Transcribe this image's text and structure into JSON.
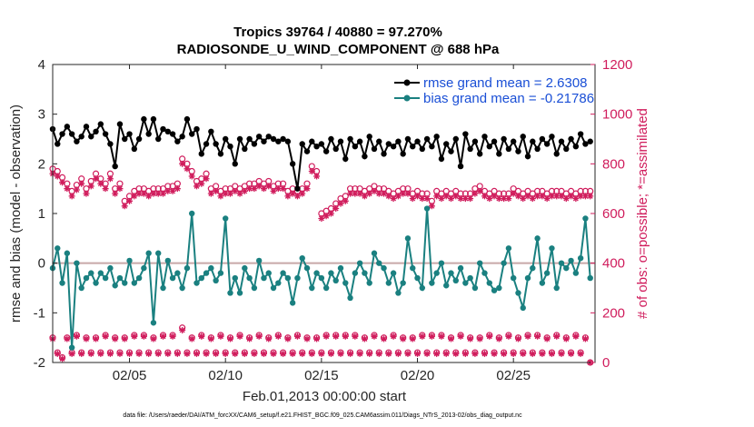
{
  "chart_data": {
    "type": "line",
    "title_line1": "Tropics 39764 / 40880 = 97.270%",
    "title_line2": "RADIOSONDE_U_WIND_COMPONENT @ 688 hPa",
    "xlabel": "Feb.01,2013 00:00:00 start",
    "ylabel_left": "rmse and bias (model - observation)",
    "ylabel_right": "# of obs: o=possible; *=assimilated",
    "xlim": [
      1,
      29.25
    ],
    "ylim_left": [
      -2,
      4
    ],
    "ylim_right": [
      0,
      1200
    ],
    "x_tick_positions": [
      5,
      10,
      15,
      20,
      25
    ],
    "x_tick_labels": [
      "02/05",
      "02/10",
      "02/15",
      "02/20",
      "02/25"
    ],
    "y_left_ticks": [
      "-2",
      "-1",
      "0",
      "1",
      "2",
      "3",
      "4"
    ],
    "y_right_ticks": [
      "0",
      "200",
      "400",
      "600",
      "800",
      "1000",
      "1200"
    ],
    "legend": {
      "rmse_label": "rmse grand mean = 2.6308",
      "bias_label": "bias grand mean = -0.21786"
    },
    "footnote": "data file: /Users/raeder/DAI/ATM_forcXX/CAM6_setup/f.e21.FHIST_BGC.f09_025.CAM6assim.011/Diags_NTrS_2013-02/obs_diag_output.nc",
    "colors": {
      "rmse": "#000000",
      "bias": "#1a8080",
      "obs": "#d01c5c",
      "zero_line": "#c8a8a8",
      "legend_text": "#1a4fd6"
    },
    "x": [
      1.0,
      1.25,
      1.5,
      1.75,
      2.0,
      2.25,
      2.5,
      2.75,
      3.0,
      3.25,
      3.5,
      3.75,
      4.0,
      4.25,
      4.5,
      4.75,
      5.0,
      5.25,
      5.5,
      5.75,
      6.0,
      6.25,
      6.5,
      6.75,
      7.0,
      7.25,
      7.5,
      7.75,
      8.0,
      8.25,
      8.5,
      8.75,
      9.0,
      9.25,
      9.5,
      9.75,
      10.0,
      10.25,
      10.5,
      10.75,
      11.0,
      11.25,
      11.5,
      11.75,
      12.0,
      12.25,
      12.5,
      12.75,
      13.0,
      13.25,
      13.5,
      13.75,
      14.0,
      14.25,
      14.5,
      14.75,
      15.0,
      15.25,
      15.5,
      15.75,
      16.0,
      16.25,
      16.5,
      16.75,
      17.0,
      17.25,
      17.5,
      17.75,
      18.0,
      18.25,
      18.5,
      18.75,
      19.0,
      19.25,
      19.5,
      19.75,
      20.0,
      20.25,
      20.5,
      20.75,
      21.0,
      21.25,
      21.5,
      21.75,
      22.0,
      22.25,
      22.5,
      22.75,
      23.0,
      23.25,
      23.5,
      23.75,
      24.0,
      24.25,
      24.5,
      24.75,
      25.0,
      25.25,
      25.5,
      25.75,
      26.0,
      26.25,
      26.5,
      26.75,
      27.0,
      27.25,
      27.5,
      27.75,
      28.0,
      28.25,
      28.5,
      28.75,
      29.0
    ],
    "rmse": [
      2.7,
      2.4,
      2.6,
      2.75,
      2.6,
      2.45,
      2.55,
      2.75,
      2.55,
      2.65,
      2.8,
      2.6,
      2.4,
      1.95,
      2.8,
      2.5,
      2.6,
      2.3,
      2.5,
      2.9,
      2.6,
      2.9,
      2.5,
      2.7,
      2.65,
      2.6,
      2.45,
      2.55,
      2.9,
      2.6,
      2.7,
      2.2,
      2.4,
      2.65,
      2.4,
      2.2,
      2.5,
      2.35,
      2.0,
      2.5,
      2.3,
      2.5,
      2.4,
      2.55,
      2.45,
      2.55,
      2.5,
      2.45,
      2.5,
      2.45,
      2.0,
      1.5,
      2.4,
      2.25,
      2.45,
      2.35,
      2.4,
      2.25,
      2.5,
      2.3,
      2.45,
      2.1,
      2.5,
      2.35,
      2.45,
      2.15,
      2.55,
      2.3,
      2.45,
      2.2,
      2.4,
      2.35,
      2.45,
      2.2,
      2.5,
      2.35,
      2.45,
      2.3,
      2.5,
      2.35,
      2.55,
      2.1,
      2.4,
      2.25,
      2.5,
      1.95,
      2.6,
      2.3,
      2.45,
      2.2,
      2.55,
      2.35,
      2.45,
      2.2,
      2.5,
      2.3,
      2.45,
      2.25,
      2.55,
      2.15,
      2.45,
      2.3,
      2.5,
      2.4,
      2.55,
      2.2,
      2.45,
      2.3,
      2.5,
      2.35,
      2.6,
      2.4,
      2.45
    ],
    "bias": [
      -0.1,
      0.3,
      -0.4,
      0.2,
      -1.7,
      0.0,
      -0.5,
      -0.3,
      -0.2,
      -0.4,
      -0.2,
      -0.3,
      -0.1,
      -0.45,
      -0.3,
      -0.4,
      0.05,
      -0.4,
      -0.3,
      -0.1,
      0.2,
      -1.2,
      0.2,
      -0.5,
      0.05,
      -0.3,
      -0.2,
      -0.5,
      -0.1,
      1.0,
      -0.4,
      -0.3,
      -0.2,
      -0.1,
      -0.35,
      -0.2,
      0.9,
      -0.6,
      -0.3,
      -0.6,
      -0.1,
      -0.3,
      -0.5,
      0.05,
      -0.3,
      -0.2,
      -0.5,
      -0.4,
      -0.2,
      -0.3,
      -0.8,
      -0.3,
      0.1,
      -0.1,
      -0.5,
      -0.2,
      -0.3,
      -0.5,
      -0.2,
      -0.35,
      -0.1,
      -0.4,
      -0.7,
      -0.2,
      0.0,
      -0.2,
      -0.4,
      0.2,
      0.0,
      -0.1,
      -0.4,
      -0.2,
      -0.6,
      -0.4,
      0.5,
      -0.1,
      -0.3,
      -0.5,
      1.1,
      -0.4,
      -0.2,
      0.0,
      -0.45,
      -0.2,
      -0.35,
      -0.1,
      -0.4,
      -0.3,
      -0.5,
      0.0,
      -0.2,
      -0.4,
      -0.55,
      -0.5,
      0.0,
      0.3,
      -0.3,
      -0.6,
      -0.9,
      -0.3,
      -0.1,
      0.5,
      -0.4,
      -0.2,
      0.3,
      -0.5,
      0.0,
      -0.1,
      0.05,
      -0.2,
      0.1,
      0.9,
      -0.3
    ],
    "obs_possible": [
      780,
      770,
      745,
      720,
      690,
      715,
      740,
      700,
      730,
      760,
      740,
      720,
      760,
      700,
      720,
      650,
      670,
      690,
      700,
      700,
      690,
      700,
      700,
      700,
      710,
      710,
      720,
      820,
      800,
      770,
      730,
      740,
      760,
      700,
      710,
      690,
      700,
      700,
      710,
      700,
      710,
      720,
      720,
      730,
      720,
      730,
      710,
      720,
      720,
      690,
      700,
      690,
      700,
      720,
      790,
      770,
      600,
      610,
      620,
      640,
      660,
      670,
      700,
      700,
      700,
      690,
      700,
      710,
      700,
      700,
      690,
      680,
      690,
      700,
      700,
      680,
      690,
      680,
      680,
      650,
      690,
      680,
      690,
      680,
      690,
      680,
      680,
      680,
      700,
      710,
      690,
      680,
      690,
      680,
      680,
      680,
      700,
      690,
      680,
      690,
      680,
      690,
      690,
      680,
      690,
      690,
      690,
      680,
      690,
      680,
      690,
      690,
      690
    ],
    "obs_assimilated": [
      760,
      750,
      725,
      700,
      670,
      695,
      720,
      680,
      710,
      740,
      720,
      700,
      740,
      680,
      700,
      630,
      650,
      670,
      680,
      680,
      670,
      680,
      680,
      680,
      690,
      690,
      700,
      800,
      780,
      750,
      710,
      720,
      740,
      680,
      690,
      670,
      680,
      680,
      690,
      680,
      690,
      700,
      700,
      710,
      700,
      710,
      690,
      700,
      700,
      670,
      680,
      670,
      680,
      700,
      770,
      750,
      580,
      590,
      600,
      620,
      640,
      650,
      680,
      680,
      680,
      670,
      680,
      690,
      680,
      680,
      670,
      660,
      670,
      680,
      680,
      660,
      670,
      660,
      660,
      630,
      670,
      660,
      670,
      660,
      670,
      660,
      660,
      660,
      680,
      690,
      670,
      660,
      670,
      660,
      660,
      660,
      680,
      670,
      660,
      670,
      660,
      670,
      670,
      660,
      670,
      670,
      670,
      660,
      670,
      660,
      670,
      670,
      670
    ],
    "obs_low_possible": [
      100,
      40,
      20,
      100,
      40,
      110,
      40,
      100,
      40,
      100,
      40,
      110,
      40,
      100,
      40,
      100,
      40,
      110,
      40,
      110,
      40,
      100,
      40,
      110,
      40,
      110,
      40,
      140,
      40,
      100,
      40,
      110,
      40,
      100,
      40,
      110,
      40,
      100,
      40,
      110,
      40,
      100,
      40,
      110,
      40,
      100,
      40,
      110,
      40,
      100,
      40,
      110,
      40,
      100,
      40,
      100,
      40,
      110,
      40,
      110,
      40,
      110,
      40,
      110,
      40,
      100,
      40,
      110,
      40,
      100,
      40,
      110,
      40,
      100,
      40,
      100,
      40,
      110,
      40,
      110,
      40,
      110,
      40,
      100,
      40,
      110,
      40,
      100,
      40,
      100,
      40,
      110,
      40,
      100,
      40,
      110,
      40,
      100,
      40,
      110,
      40,
      110,
      40,
      100,
      40,
      110,
      40,
      100,
      40,
      110,
      40,
      100,
      0
    ],
    "obs_low_assimilated": [
      95,
      35,
      15,
      95,
      35,
      105,
      35,
      95,
      35,
      95,
      35,
      105,
      35,
      95,
      35,
      95,
      35,
      105,
      35,
      105,
      35,
      95,
      35,
      105,
      35,
      105,
      35,
      130,
      35,
      95,
      35,
      105,
      35,
      95,
      35,
      105,
      35,
      95,
      35,
      105,
      35,
      95,
      35,
      105,
      35,
      95,
      35,
      105,
      35,
      95,
      35,
      105,
      35,
      95,
      35,
      95,
      35,
      105,
      35,
      105,
      35,
      105,
      35,
      105,
      35,
      95,
      35,
      105,
      35,
      95,
      35,
      105,
      35,
      95,
      35,
      95,
      35,
      105,
      35,
      105,
      35,
      105,
      35,
      95,
      35,
      105,
      35,
      95,
      35,
      95,
      35,
      105,
      35,
      95,
      35,
      105,
      35,
      95,
      35,
      105,
      35,
      105,
      35,
      95,
      35,
      105,
      35,
      95,
      35,
      105,
      35,
      95,
      0
    ]
  }
}
